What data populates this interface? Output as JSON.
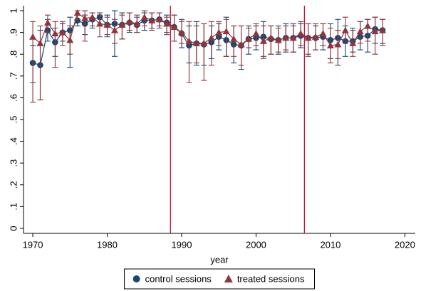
{
  "chart_data": {
    "type": "errorbar-line",
    "x_label": "year",
    "x": [
      1970,
      1971,
      1972,
      1973,
      1974,
      1975,
      1976,
      1977,
      1978,
      1979,
      1980,
      1981,
      1982,
      1983,
      1984,
      1985,
      1986,
      1987,
      1988,
      1989,
      1990,
      1991,
      1992,
      1993,
      1994,
      1995,
      1996,
      1997,
      1998,
      1999,
      2000,
      2001,
      2002,
      2003,
      2004,
      2005,
      2006,
      2007,
      2008,
      2009,
      2010,
      2011,
      2012,
      2013,
      2014,
      2015,
      2016,
      2017
    ],
    "series": [
      {
        "name": "control sessions",
        "color": "#1a476f",
        "marker": "circle",
        "values": [
          0.76,
          0.75,
          0.91,
          0.855,
          0.9,
          0.91,
          0.955,
          0.94,
          0.96,
          0.97,
          0.935,
          0.94,
          0.935,
          0.945,
          0.935,
          0.955,
          0.955,
          0.96,
          0.945,
          0.925,
          0.895,
          0.84,
          0.85,
          0.845,
          0.855,
          0.88,
          0.865,
          0.845,
          0.84,
          0.87,
          0.875,
          0.88,
          0.87,
          0.865,
          0.875,
          0.875,
          0.885,
          0.875,
          0.875,
          0.88,
          0.865,
          0.875,
          0.86,
          0.86,
          0.88,
          0.885,
          0.915,
          0.91
        ],
        "ci_low": [
          0.67,
          0.59,
          0.86,
          0.79,
          0.86,
          0.74,
          0.93,
          0.89,
          0.92,
          0.93,
          0.88,
          0.79,
          0.87,
          0.9,
          0.9,
          0.91,
          0.92,
          0.92,
          0.9,
          0.86,
          0.83,
          0.76,
          0.75,
          0.75,
          0.78,
          0.82,
          0.79,
          0.76,
          0.73,
          0.8,
          0.82,
          0.79,
          0.8,
          0.8,
          0.81,
          0.81,
          0.83,
          0.8,
          0.82,
          0.82,
          0.78,
          0.75,
          0.79,
          0.81,
          0.82,
          0.81,
          0.85,
          0.85
        ],
        "ci_high": [
          0.84,
          0.91,
          0.96,
          0.92,
          0.94,
          0.97,
          0.98,
          0.98,
          0.99,
          0.99,
          0.98,
          1.0,
          0.99,
          0.99,
          0.97,
          0.99,
          0.99,
          0.99,
          0.98,
          0.98,
          0.96,
          0.93,
          0.95,
          0.94,
          0.93,
          0.94,
          0.97,
          0.93,
          0.93,
          0.93,
          0.93,
          0.95,
          0.93,
          0.93,
          0.94,
          0.94,
          0.94,
          0.94,
          0.93,
          0.94,
          0.94,
          0.96,
          0.93,
          0.92,
          0.95,
          0.96,
          0.97,
          0.96
        ]
      },
      {
        "name": "treated sessions",
        "color": "#90353b",
        "marker": "triangle",
        "values": [
          0.88,
          0.85,
          0.945,
          0.895,
          0.9,
          0.865,
          0.99,
          0.965,
          0.97,
          0.94,
          0.935,
          0.91,
          0.935,
          0.95,
          0.94,
          0.97,
          0.955,
          0.96,
          0.94,
          0.925,
          0.9,
          0.86,
          0.85,
          0.85,
          0.875,
          0.9,
          0.905,
          0.87,
          0.845,
          0.87,
          0.895,
          0.86,
          0.875,
          0.865,
          0.875,
          0.875,
          0.895,
          0.875,
          0.88,
          0.895,
          0.84,
          0.845,
          0.91,
          0.85,
          0.905,
          0.93,
          0.905,
          0.91
        ],
        "ci_low": [
          0.58,
          0.59,
          0.9,
          0.74,
          0.84,
          0.8,
          0.96,
          0.86,
          0.93,
          0.88,
          0.89,
          0.85,
          0.87,
          0.91,
          0.9,
          0.93,
          0.91,
          0.93,
          0.89,
          0.86,
          0.85,
          0.67,
          0.76,
          0.68,
          0.75,
          0.84,
          0.79,
          0.79,
          0.75,
          0.83,
          0.84,
          0.78,
          0.8,
          0.81,
          0.82,
          0.81,
          0.84,
          0.79,
          0.82,
          0.84,
          0.76,
          0.78,
          0.85,
          0.79,
          0.85,
          0.86,
          0.8,
          0.84
        ],
        "ci_high": [
          0.95,
          0.93,
          0.98,
          0.95,
          0.95,
          0.93,
          1.0,
          1.0,
          0.99,
          0.98,
          0.97,
          0.96,
          0.98,
          0.99,
          0.98,
          1.0,
          0.99,
          0.99,
          0.97,
          0.98,
          0.95,
          0.95,
          0.93,
          0.94,
          0.95,
          0.95,
          0.96,
          0.93,
          0.93,
          0.92,
          0.94,
          0.93,
          0.93,
          0.92,
          0.93,
          0.93,
          0.95,
          0.94,
          0.94,
          0.94,
          0.92,
          0.91,
          0.97,
          0.91,
          0.95,
          0.96,
          0.97,
          0.96
        ]
      }
    ],
    "xlim": [
      1968.75,
      2021.4
    ],
    "ylim": [
      -0.023,
      1.023
    ],
    "xticks": [
      1970,
      1980,
      1990,
      2000,
      2010,
      2020
    ],
    "yticks": [
      0,
      {
        "value": 0.1,
        "label": ".1"
      },
      {
        "value": 0.2,
        "label": ".2"
      },
      {
        "value": 0.3,
        "label": ".3"
      },
      {
        "value": 0.4,
        "label": ".4"
      },
      {
        "value": 0.5,
        "label": ".5"
      },
      {
        "value": 0.6,
        "label": ".6"
      },
      {
        "value": 0.7,
        "label": ".7"
      },
      {
        "value": 0.8,
        "label": ".8"
      },
      {
        "value": 0.9,
        "label": ".9"
      },
      1
    ],
    "xlines": [
      1988.5,
      2006.5
    ],
    "xline_color": "#c8102e",
    "grid": false,
    "legend_position": "bottom"
  }
}
